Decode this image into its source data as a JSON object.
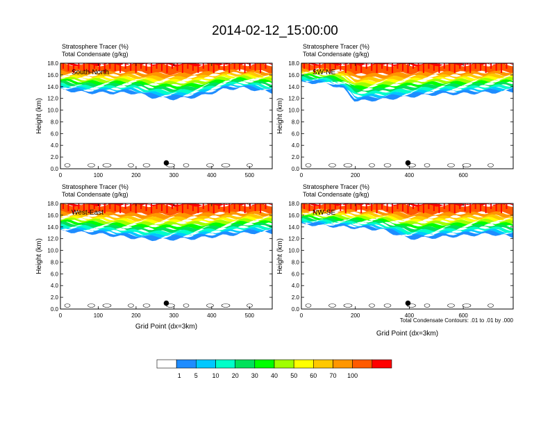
{
  "figure": {
    "title": "2014-02-12_15:00:00",
    "colors": {
      "orange": "#ff5a00",
      "red": "#ff0000",
      "contour": "#000000"
    }
  },
  "chart_data": [
    {
      "type": "heatmap",
      "panel_id": "south-north",
      "left_title_line1": "Stratosphere Tracer   (%)",
      "left_title_line2": "Total Condensate   (g/kg)",
      "label": "South-North",
      "ylabel": "Height (km)",
      "xlabel": "",
      "xlim": [
        0,
        560
      ],
      "ylim": [
        0,
        18
      ],
      "xticks": [
        "0",
        "100",
        "200",
        "300",
        "400",
        "500"
      ],
      "yticks": [
        "0.0",
        "2.0",
        "4.0",
        "6.0",
        "8.0",
        "10.0",
        "12.0",
        "14.0",
        "16.0",
        "18.0"
      ],
      "marker": {
        "x": 280,
        "y": 1.0
      },
      "layer_bottom_km": [
        [
          0,
          13.5
        ],
        [
          60,
          13.0
        ],
        [
          120,
          12.9
        ],
        [
          200,
          12.9
        ],
        [
          240,
          12.2
        ],
        [
          300,
          11.9
        ],
        [
          340,
          12.1
        ],
        [
          380,
          12.5
        ],
        [
          430,
          13.5
        ],
        [
          480,
          13.8
        ],
        [
          560,
          13.0
        ]
      ]
    },
    {
      "type": "heatmap",
      "panel_id": "sw-ne",
      "left_title_line1": "Stratosphere Tracer   (%)",
      "left_title_line2": "Total Condensate   (g/kg)",
      "label": "SW-NE",
      "ylabel": "Height (km)",
      "xlabel": "",
      "xlim": [
        0,
        785
      ],
      "ylim": [
        0,
        18
      ],
      "xticks": [
        "0",
        "200",
        "400",
        "600"
      ],
      "yticks": [
        "0.0",
        "2.0",
        "4.0",
        "6.0",
        "8.0",
        "10.0",
        "12.0",
        "14.0",
        "16.0",
        "18.0"
      ],
      "marker": {
        "x": 395,
        "y": 1.0
      },
      "layer_bottom_km": [
        [
          0,
          14.8
        ],
        [
          100,
          14.5
        ],
        [
          160,
          13.5
        ],
        [
          200,
          11.5
        ],
        [
          300,
          11.8
        ],
        [
          400,
          12.3
        ],
        [
          500,
          12.7
        ],
        [
          600,
          12.8
        ],
        [
          700,
          13.0
        ],
        [
          785,
          13.2
        ]
      ]
    },
    {
      "type": "heatmap",
      "panel_id": "west-east",
      "left_title_line1": "Stratosphere Tracer   (%)",
      "left_title_line2": "Total Condensate   (g/kg)",
      "label": "West-East",
      "ylabel": "Height (km)",
      "xlabel": "Grid Point (dx=3km)",
      "xlim": [
        0,
        560
      ],
      "ylim": [
        0,
        18
      ],
      "xticks": [
        "0",
        "100",
        "200",
        "300",
        "400",
        "500"
      ],
      "yticks": [
        "0.0",
        "2.0",
        "4.0",
        "6.0",
        "8.0",
        "10.0",
        "12.0",
        "14.0",
        "16.0",
        "18.0"
      ],
      "marker": {
        "x": 280,
        "y": 1.0
      },
      "layer_bottom_km": [
        [
          0,
          13.3
        ],
        [
          100,
          12.8
        ],
        [
          180,
          12.2
        ],
        [
          250,
          11.8
        ],
        [
          350,
          12.0
        ],
        [
          430,
          12.5
        ],
        [
          500,
          13.0
        ],
        [
          560,
          13.0
        ]
      ]
    },
    {
      "type": "heatmap",
      "panel_id": "nw-se",
      "left_title_line1": "Stratosphere Tracer   (%)",
      "left_title_line2": "Total Condensate   (g/kg)",
      "label": "NW-SE",
      "ylabel": "Height (km)",
      "xlabel": "Grid Point (dx=3km)",
      "xlim": [
        0,
        785
      ],
      "ylim": [
        0,
        18
      ],
      "xticks": [
        "0",
        "200",
        "400",
        "600"
      ],
      "yticks": [
        "0.0",
        "2.0",
        "4.0",
        "6.0",
        "8.0",
        "10.0",
        "12.0",
        "14.0",
        "16.0",
        "18.0"
      ],
      "marker": {
        "x": 395,
        "y": 1.0
      },
      "layer_bottom_km": [
        [
          0,
          14.5
        ],
        [
          150,
          14.0
        ],
        [
          300,
          13.5
        ],
        [
          400,
          12.0
        ],
        [
          500,
          12.2
        ],
        [
          600,
          12.5
        ],
        [
          700,
          12.8
        ],
        [
          785,
          12.3
        ]
      ],
      "footnote": "Total Condensate Contours: .01 to .01 by .000"
    }
  ],
  "colorbar": {
    "levels": [
      "1",
      "5",
      "10",
      "20",
      "30",
      "40",
      "50",
      "60",
      "70",
      "100"
    ],
    "colors": [
      "#ffffff",
      "#1e8cff",
      "#00c8ff",
      "#00ffc8",
      "#00e15a",
      "#00ff00",
      "#a0ff00",
      "#ffff00",
      "#ffc800",
      "#ff9600",
      "#ff5a00",
      "#ff0000"
    ]
  }
}
